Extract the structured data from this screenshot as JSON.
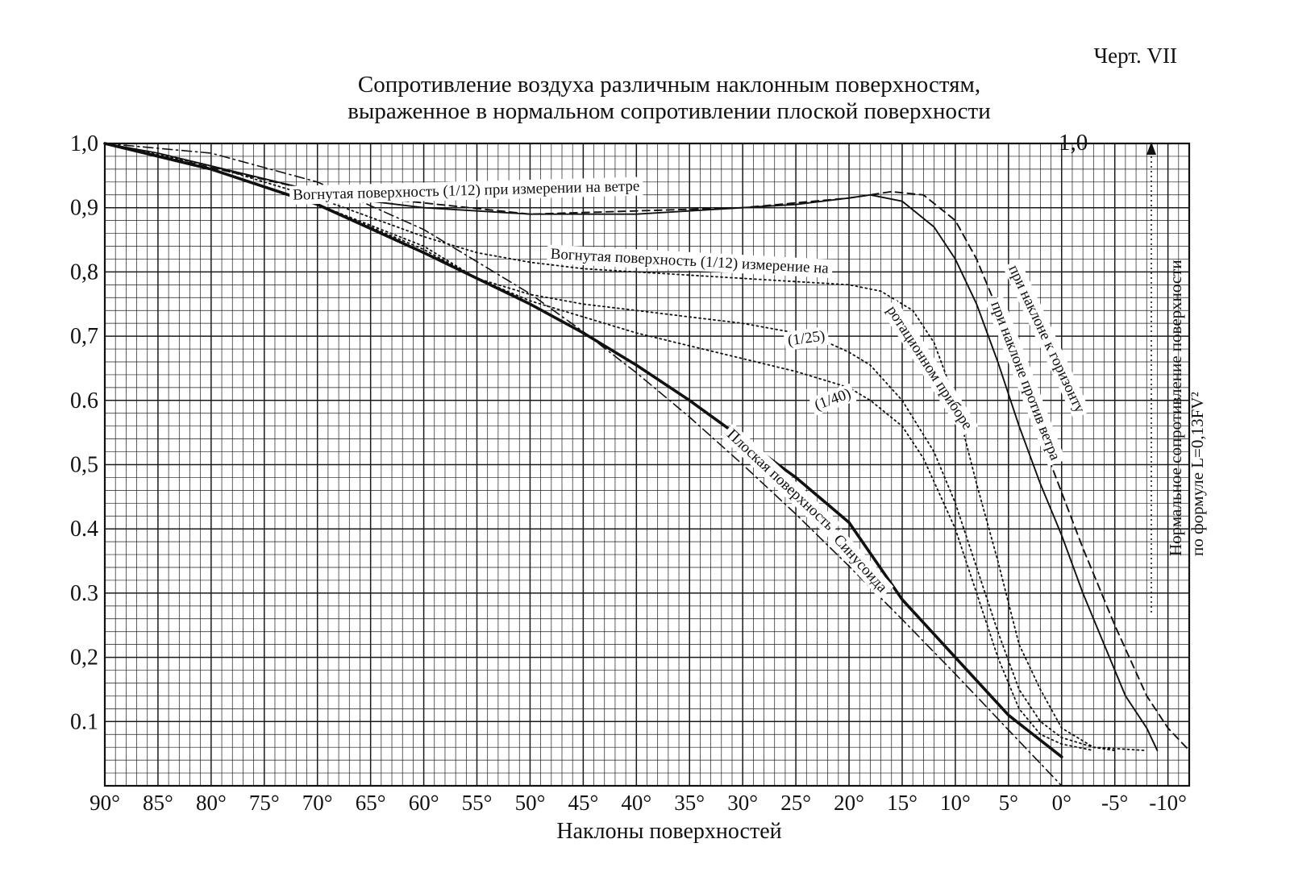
{
  "chart_data": {
    "type": "line",
    "plate_label": "Черт. VII",
    "title": [
      "Сопротивление воздуха различным наклонным поверхностям,",
      "выраженное в нормальном сопротивлении плоской поверхности"
    ],
    "xlabel": "Наклоны поверхностей",
    "ylabel_right": [
      "Нормальное сопротивление поверхности",
      "по формуле L=0,13FV²"
    ],
    "right_axis_tick": "1,0",
    "xlim": [
      90,
      -12
    ],
    "ylim": [
      0,
      1.0
    ],
    "grid": true,
    "x_ticks": [
      {
        "value": 90,
        "label": "90°"
      },
      {
        "value": 85,
        "label": "85°"
      },
      {
        "value": 80,
        "label": "80°"
      },
      {
        "value": 75,
        "label": "75°"
      },
      {
        "value": 70,
        "label": "70°"
      },
      {
        "value": 65,
        "label": "65°"
      },
      {
        "value": 60,
        "label": "60°"
      },
      {
        "value": 55,
        "label": "55°"
      },
      {
        "value": 50,
        "label": "50°"
      },
      {
        "value": 45,
        "label": "45°"
      },
      {
        "value": 40,
        "label": "40°"
      },
      {
        "value": 35,
        "label": "35°"
      },
      {
        "value": 30,
        "label": "30°"
      },
      {
        "value": 25,
        "label": "25°"
      },
      {
        "value": 20,
        "label": "20°"
      },
      {
        "value": 15,
        "label": "15°"
      },
      {
        "value": 10,
        "label": "10°"
      },
      {
        "value": 5,
        "label": "5°"
      },
      {
        "value": 0,
        "label": "0°"
      },
      {
        "value": -5,
        "label": "-5°"
      },
      {
        "value": -10,
        "label": "-10°"
      }
    ],
    "y_ticks": [
      {
        "value": 1.0,
        "label": "1,0"
      },
      {
        "value": 0.9,
        "label": "0,9"
      },
      {
        "value": 0.8,
        "label": "0,8"
      },
      {
        "value": 0.7,
        "label": "0,7"
      },
      {
        "value": 0.6,
        "label": "0.6"
      },
      {
        "value": 0.5,
        "label": "0,5"
      },
      {
        "value": 0.4,
        "label": "0.4"
      },
      {
        "value": 0.3,
        "label": "0.3"
      },
      {
        "value": 0.2,
        "label": "0,2"
      },
      {
        "value": 0.1,
        "label": "0.1"
      }
    ],
    "series": [
      {
        "name": "Плоская поверхность",
        "style": "solid-bold",
        "points": [
          [
            90,
            1.0
          ],
          [
            80,
            0.96
          ],
          [
            70,
            0.905
          ],
          [
            60,
            0.83
          ],
          [
            50,
            0.75
          ],
          [
            45,
            0.705
          ],
          [
            40,
            0.655
          ],
          [
            35,
            0.6
          ],
          [
            30,
            0.54
          ],
          [
            25,
            0.48
          ],
          [
            20,
            0.41
          ],
          [
            15,
            0.29
          ],
          [
            10,
            0.2
          ],
          [
            5,
            0.11
          ],
          [
            0,
            0.045
          ]
        ]
      },
      {
        "name": "Синусоида",
        "style": "dash-dot",
        "points": [
          [
            90,
            1.0
          ],
          [
            80,
            0.985
          ],
          [
            70,
            0.94
          ],
          [
            60,
            0.866
          ],
          [
            50,
            0.766
          ],
          [
            45,
            0.707
          ],
          [
            40,
            0.643
          ],
          [
            35,
            0.574
          ],
          [
            30,
            0.5
          ],
          [
            25,
            0.423
          ],
          [
            20,
            0.342
          ],
          [
            15,
            0.259
          ],
          [
            10,
            0.174
          ],
          [
            5,
            0.087
          ],
          [
            0,
            0.0
          ]
        ]
      },
      {
        "name": "Вогнутая поверхность (1/12) при измерении на ветре",
        "style": "solid-thin",
        "points": [
          [
            90,
            1.0
          ],
          [
            85,
            0.985
          ],
          [
            80,
            0.965
          ],
          [
            75,
            0.945
          ],
          [
            70,
            0.925
          ],
          [
            65,
            0.91
          ],
          [
            60,
            0.9
          ],
          [
            55,
            0.895
          ],
          [
            50,
            0.89
          ],
          [
            45,
            0.89
          ],
          [
            40,
            0.89
          ],
          [
            35,
            0.895
          ],
          [
            30,
            0.9
          ],
          [
            25,
            0.905
          ],
          [
            20,
            0.915
          ],
          [
            18,
            0.92
          ],
          [
            15,
            0.91
          ],
          [
            12,
            0.87
          ],
          [
            10,
            0.82
          ],
          [
            8,
            0.75
          ],
          [
            6,
            0.66
          ],
          [
            4,
            0.56
          ],
          [
            2,
            0.47
          ],
          [
            0,
            0.39
          ],
          [
            -2,
            0.3
          ],
          [
            -4,
            0.22
          ],
          [
            -6,
            0.14
          ],
          [
            -8,
            0.09
          ],
          [
            -9,
            0.055
          ]
        ]
      },
      {
        "name": "при наклоне к горизонту",
        "style": "dashed",
        "points": [
          [
            90,
            1.0
          ],
          [
            70,
            0.925
          ],
          [
            50,
            0.89
          ],
          [
            30,
            0.9
          ],
          [
            20,
            0.915
          ],
          [
            16,
            0.925
          ],
          [
            13,
            0.92
          ],
          [
            10,
            0.88
          ],
          [
            8,
            0.82
          ],
          [
            5,
            0.7
          ],
          [
            3,
            0.6
          ],
          [
            1,
            0.5
          ],
          [
            -2,
            0.37
          ],
          [
            -5,
            0.25
          ],
          [
            -8,
            0.14
          ],
          [
            -10,
            0.09
          ],
          [
            -12,
            0.055
          ]
        ]
      },
      {
        "name": "Вогнутая поверхность (1/12) измерение на ротационном приборе",
        "style": "dotted",
        "points": [
          [
            90,
            1.0
          ],
          [
            80,
            0.965
          ],
          [
            70,
            0.915
          ],
          [
            60,
            0.855
          ],
          [
            55,
            0.83
          ],
          [
            50,
            0.815
          ],
          [
            45,
            0.805
          ],
          [
            40,
            0.8
          ],
          [
            35,
            0.795
          ],
          [
            30,
            0.79
          ],
          [
            25,
            0.785
          ],
          [
            20,
            0.78
          ],
          [
            17,
            0.77
          ],
          [
            14,
            0.74
          ],
          [
            12,
            0.69
          ],
          [
            10,
            0.6
          ],
          [
            8,
            0.47
          ],
          [
            6,
            0.35
          ],
          [
            4,
            0.22
          ],
          [
            2,
            0.15
          ],
          [
            0,
            0.09
          ],
          [
            -3,
            0.06
          ],
          [
            -8,
            0.055
          ]
        ]
      },
      {
        "name": "(1/25)",
        "style": "dotted",
        "points": [
          [
            90,
            1.0
          ],
          [
            80,
            0.96
          ],
          [
            70,
            0.905
          ],
          [
            60,
            0.84
          ],
          [
            55,
            0.79
          ],
          [
            50,
            0.765
          ],
          [
            45,
            0.75
          ],
          [
            40,
            0.74
          ],
          [
            35,
            0.73
          ],
          [
            30,
            0.72
          ],
          [
            25,
            0.705
          ],
          [
            22,
            0.69
          ],
          [
            20,
            0.675
          ],
          [
            18,
            0.655
          ],
          [
            15,
            0.6
          ],
          [
            12,
            0.52
          ],
          [
            10,
            0.44
          ],
          [
            8,
            0.34
          ],
          [
            6,
            0.24
          ],
          [
            4,
            0.15
          ],
          [
            2,
            0.1
          ],
          [
            0,
            0.075
          ],
          [
            -3,
            0.06
          ],
          [
            -5,
            0.055
          ]
        ]
      },
      {
        "name": "(1/40)",
        "style": "dotted",
        "points": [
          [
            90,
            1.0
          ],
          [
            80,
            0.96
          ],
          [
            70,
            0.905
          ],
          [
            60,
            0.835
          ],
          [
            55,
            0.79
          ],
          [
            50,
            0.755
          ],
          [
            45,
            0.73
          ],
          [
            40,
            0.705
          ],
          [
            35,
            0.685
          ],
          [
            30,
            0.665
          ],
          [
            25,
            0.645
          ],
          [
            20,
            0.62
          ],
          [
            18,
            0.6
          ],
          [
            15,
            0.56
          ],
          [
            13,
            0.51
          ],
          [
            10,
            0.4
          ],
          [
            8,
            0.3
          ],
          [
            6,
            0.2
          ],
          [
            4,
            0.12
          ],
          [
            2,
            0.08
          ],
          [
            0,
            0.065
          ],
          [
            -3,
            0.055
          ]
        ]
      }
    ],
    "annotations": [
      {
        "text": "Вогнутая  поверхность (1/12) при измерении на ветре",
        "x": 56,
        "y": 0.925,
        "angle": -1.5
      },
      {
        "text": "Вогнутая поверхность (1/12)  измерение на",
        "x": 35,
        "y": 0.815,
        "angle": 3
      },
      {
        "text": "ротационном  приборе",
        "x": 12.5,
        "y": 0.65,
        "angle": 57
      },
      {
        "text": "(1/25)",
        "x": 24,
        "y": 0.695,
        "angle": -8
      },
      {
        "text": "(1/40)",
        "x": 21.5,
        "y": 0.6,
        "angle": -20
      },
      {
        "text": "Плоская поверхность",
        "x": 26.5,
        "y": 0.475,
        "angle": 43
      },
      {
        "text": "Синусоида",
        "x": 19,
        "y": 0.345,
        "angle": 48
      },
      {
        "text": "при наклоне к горизонту",
        "x": 1.5,
        "y": 0.695,
        "angle": 65
      },
      {
        "text": "при наклоне против ветра",
        "x": 3.5,
        "y": 0.63,
        "angle": 69
      }
    ]
  }
}
